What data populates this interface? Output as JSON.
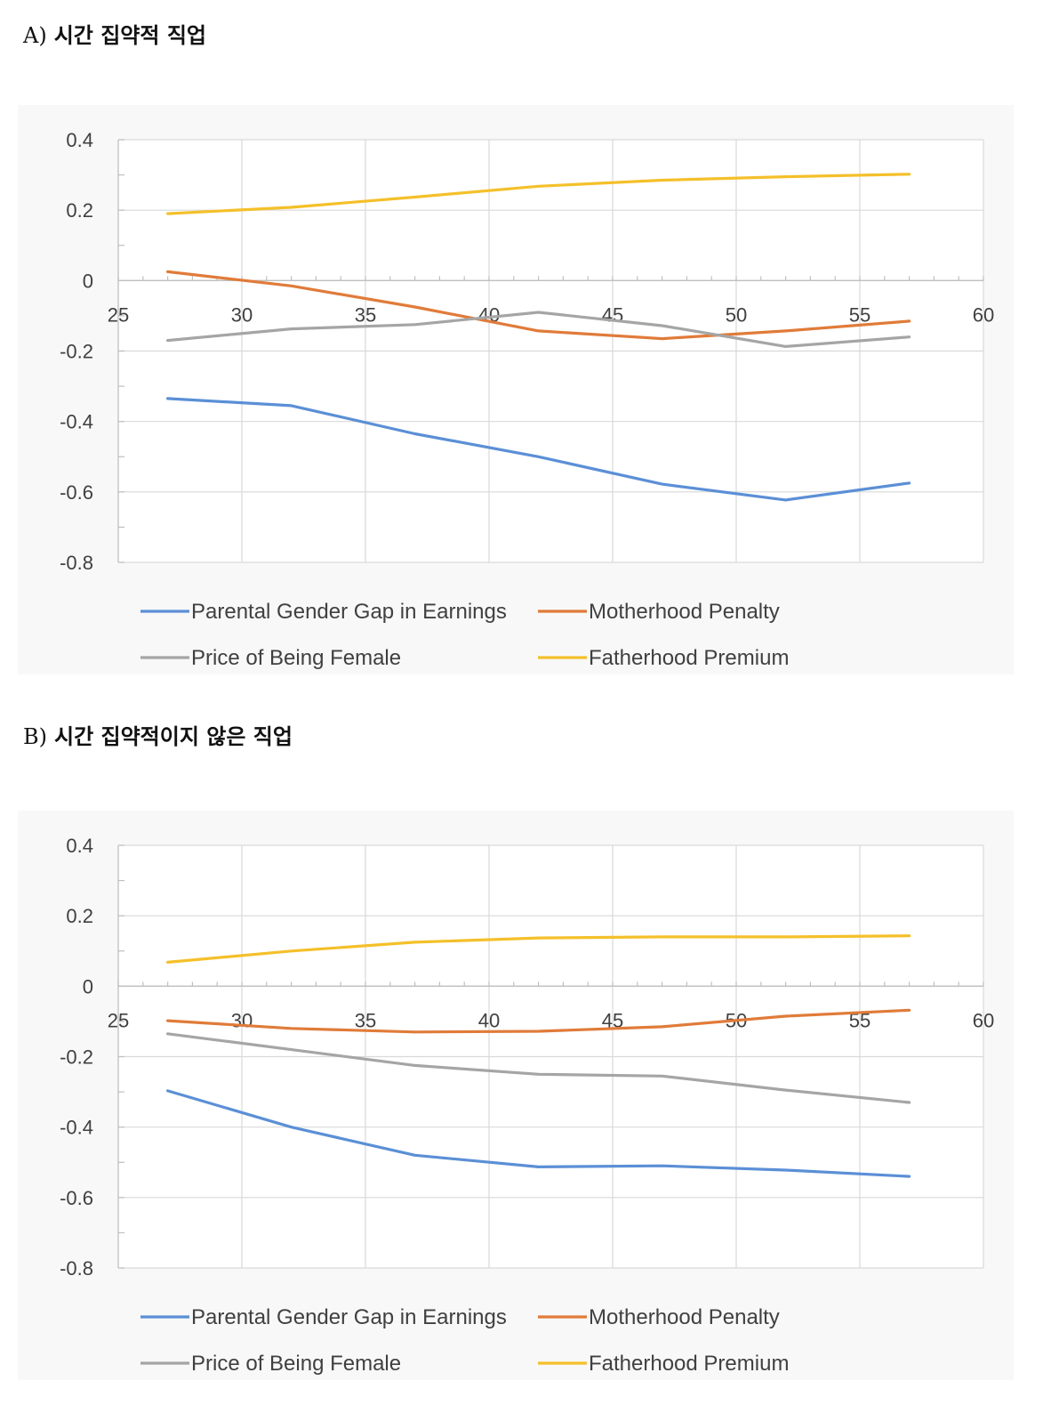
{
  "panels": [
    {
      "letter": "A)",
      "title": "시간 집약적 직업",
      "chart_data": {
        "type": "line",
        "title": "",
        "xlabel": "",
        "ylabel": "",
        "xlim": [
          25,
          60
        ],
        "ylim": [
          -0.8,
          0.4
        ],
        "x_ticks": [
          25,
          30,
          35,
          40,
          45,
          50,
          55,
          60
        ],
        "y_ticks": [
          0.4,
          0.2,
          0,
          -0.2,
          -0.4,
          -0.6,
          -0.8
        ],
        "y_tick_labels": [
          "0.4",
          "0.2",
          "0",
          "-0.2",
          "-0.4",
          "-0.6",
          "-0.8"
        ],
        "grid": true,
        "legend_position": "bottom",
        "x": [
          27,
          32,
          37,
          42,
          47,
          52,
          57
        ],
        "series": [
          {
            "name": "Parental Gender Gap in Earnings",
            "color": "#5B8FD6",
            "values": [
              -0.335,
              -0.355,
              -0.435,
              -0.5,
              -0.578,
              -0.623,
              -0.575
            ]
          },
          {
            "name": "Motherhood Penalty",
            "color": "#E07B39",
            "values": [
              0.025,
              -0.015,
              -0.075,
              -0.143,
              -0.165,
              -0.143,
              -0.115
            ]
          },
          {
            "name": "Price of Being Female",
            "color": "#A5A5A5",
            "values": [
              -0.17,
              -0.137,
              -0.125,
              -0.09,
              -0.128,
              -0.187,
              -0.16
            ]
          },
          {
            "name": "Fatherhood Premium",
            "color": "#F4C02A",
            "values": [
              0.19,
              0.208,
              0.237,
              0.268,
              0.285,
              0.295,
              0.302
            ]
          }
        ]
      }
    },
    {
      "letter": "B)",
      "title": "시간 집약적이지 않은 직업",
      "chart_data": {
        "type": "line",
        "title": "",
        "xlabel": "",
        "ylabel": "",
        "xlim": [
          25,
          60
        ],
        "ylim": [
          -0.8,
          0.4
        ],
        "x_ticks": [
          25,
          30,
          35,
          40,
          45,
          50,
          55,
          60
        ],
        "y_ticks": [
          0.4,
          0.2,
          0,
          -0.2,
          -0.4,
          -0.6,
          -0.8
        ],
        "y_tick_labels": [
          "0.4",
          "0.2",
          "0",
          "-0.2",
          "-0.4",
          "-0.6",
          "-0.8"
        ],
        "grid": true,
        "legend_position": "bottom",
        "x": [
          27,
          32,
          37,
          42,
          47,
          52,
          57
        ],
        "series": [
          {
            "name": "Parental Gender Gap in Earnings",
            "color": "#5B8FD6",
            "values": [
              -0.297,
              -0.4,
              -0.48,
              -0.513,
              -0.51,
              -0.522,
              -0.54
            ]
          },
          {
            "name": "Motherhood Penalty",
            "color": "#E07B39",
            "values": [
              -0.098,
              -0.12,
              -0.13,
              -0.128,
              -0.115,
              -0.085,
              -0.068
            ]
          },
          {
            "name": "Price of Being Female",
            "color": "#A5A5A5",
            "values": [
              -0.135,
              -0.18,
              -0.225,
              -0.25,
              -0.255,
              -0.295,
              -0.33
            ]
          },
          {
            "name": "Fatherhood Premium",
            "color": "#F4C02A",
            "values": [
              0.068,
              0.1,
              0.125,
              0.137,
              0.14,
              0.14,
              0.143
            ]
          }
        ]
      }
    }
  ]
}
